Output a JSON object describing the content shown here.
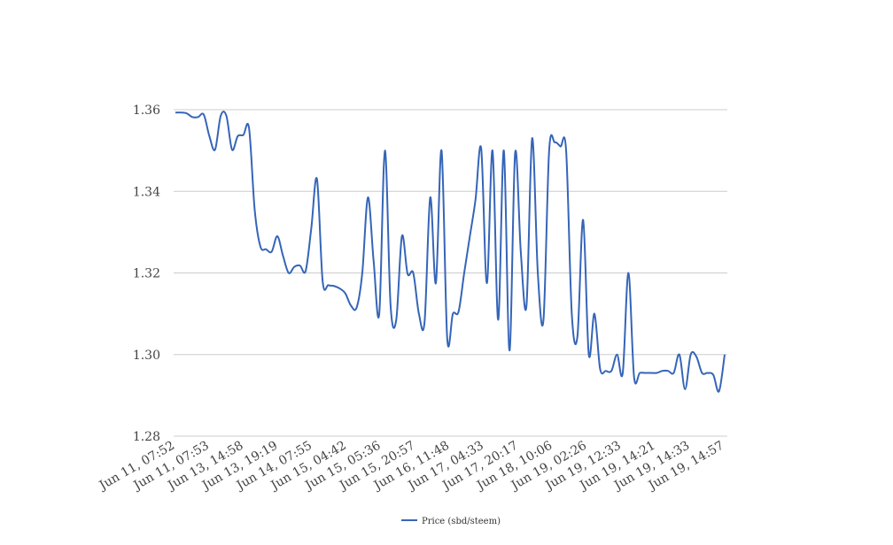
{
  "colors": {
    "series": "#3565b8",
    "grid": "#cccccc",
    "text": "#444444",
    "background": "#ffffff"
  },
  "chart_data": {
    "type": "line",
    "title": "",
    "xlabel": "",
    "ylabel": "",
    "ylim": [
      1.28,
      1.36
    ],
    "y_ticks": [
      "1.28",
      "1.30",
      "1.32",
      "1.34",
      "1.36"
    ],
    "x_tick_labels": [
      "Jun 11, 07:52",
      "Jun 11, 07:53",
      "Jun 13, 14:58",
      "Jun 13, 19:19",
      "Jun 14, 07:55",
      "Jun 15, 04:42",
      "Jun 15, 05:36",
      "Jun 15, 20:57",
      "Jun 16, 11:48",
      "Jun 17, 04:33",
      "Jun 17, 20:17",
      "Jun 18, 10:06",
      "Jun 19, 02:26",
      "Jun 19, 12:33",
      "Jun 19, 14:21",
      "Jun 19, 14:33",
      "Jun 19, 14:57"
    ],
    "grid": true,
    "legend_position": "bottom",
    "series": [
      {
        "name": "Price (sbd/steem)",
        "values": [
          1.3593,
          1.3593,
          1.3591,
          1.3582,
          1.3582,
          1.3588,
          1.3535,
          1.3502,
          1.3585,
          1.3585,
          1.3502,
          1.3535,
          1.3538,
          1.3555,
          1.3355,
          1.3265,
          1.3258,
          1.3252,
          1.329,
          1.3242,
          1.32,
          1.3215,
          1.3218,
          1.3205,
          1.331,
          1.343,
          1.318,
          1.317,
          1.3168,
          1.3162,
          1.315,
          1.312,
          1.3115,
          1.32,
          1.3385,
          1.323,
          1.31,
          1.35,
          1.312,
          1.3085,
          1.329,
          1.3198,
          1.32,
          1.31,
          1.308,
          1.3385,
          1.3175,
          1.35,
          1.304,
          1.31,
          1.3105,
          1.32,
          1.329,
          1.338,
          1.3505,
          1.3175,
          1.35,
          1.3085,
          1.35,
          1.301,
          1.3495,
          1.325,
          1.312,
          1.353,
          1.32,
          1.3085,
          1.35,
          1.352,
          1.351,
          1.35,
          1.31,
          1.3045,
          1.333,
          1.3,
          1.31,
          1.2965,
          1.296,
          1.296,
          1.3,
          1.2955,
          1.32,
          1.2945,
          1.2955,
          1.2955,
          1.2955,
          1.2955,
          1.296,
          1.296,
          1.2955,
          1.3,
          1.2915,
          1.3,
          1.2995,
          1.2955,
          1.2955,
          1.295,
          1.291,
          1.3
        ]
      }
    ]
  }
}
